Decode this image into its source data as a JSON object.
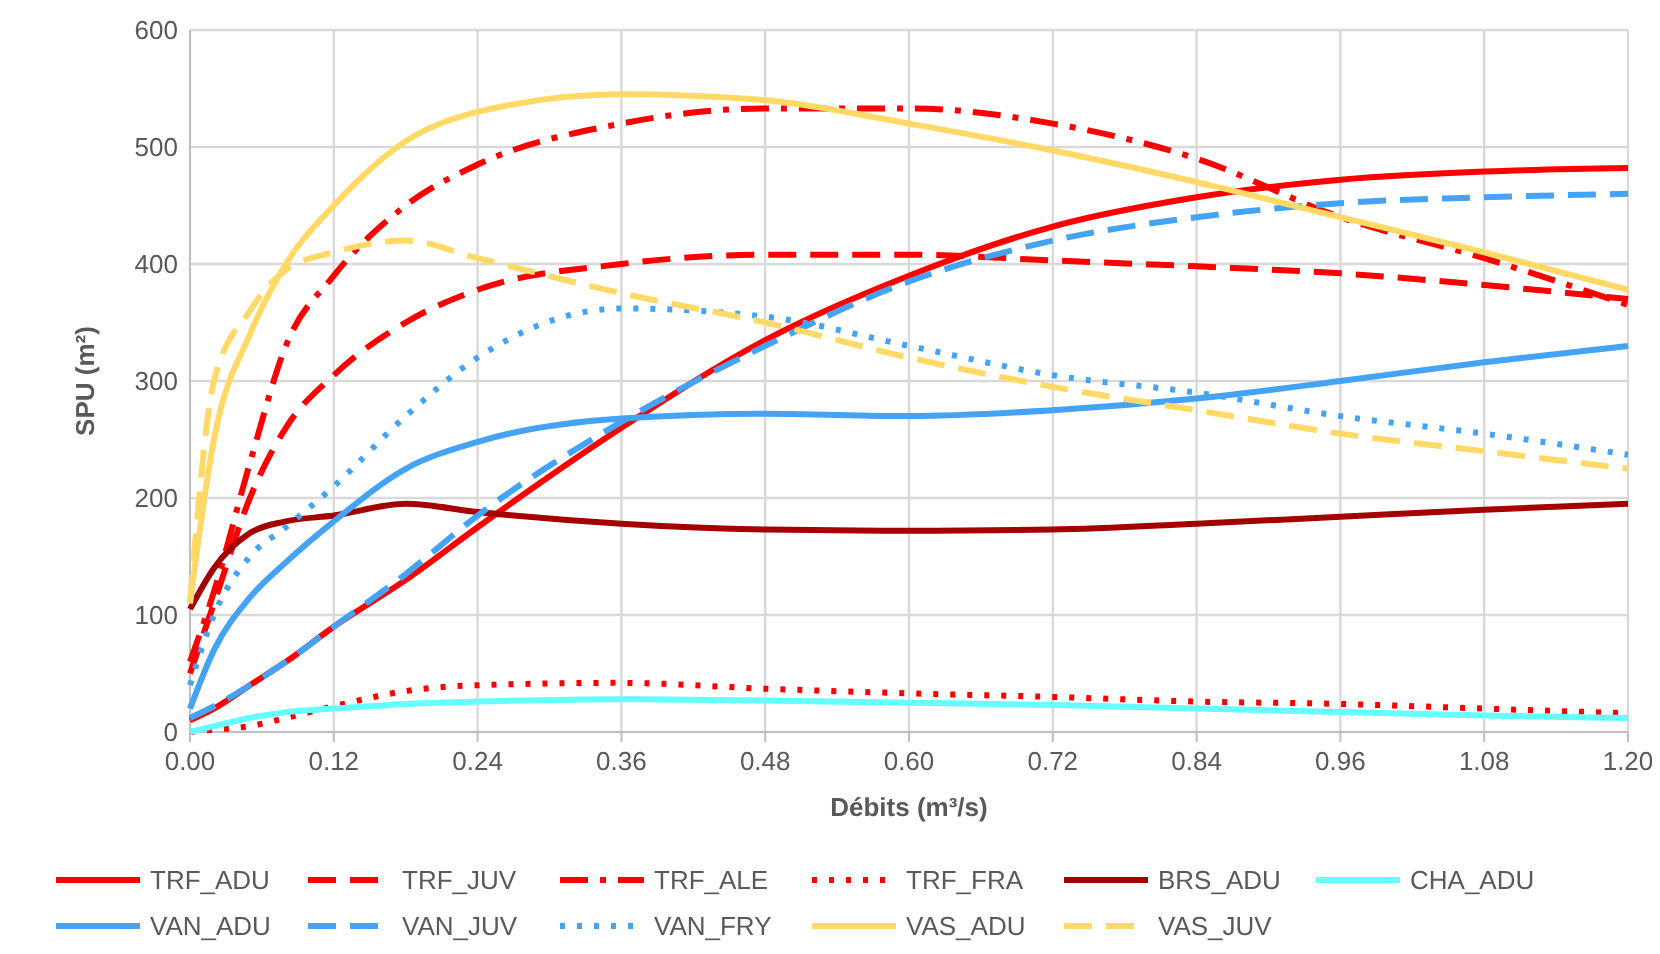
{
  "chart_data": {
    "type": "line",
    "xlabel": "Débits (m³/s)",
    "ylabel": "SPU (m²)",
    "x": [
      0,
      0.02,
      0.05,
      0.08,
      0.12,
      0.18,
      0.24,
      0.36,
      0.48,
      0.6,
      0.72,
      0.84,
      0.96,
      1.08,
      1.2
    ],
    "xlim": [
      0,
      1.2
    ],
    "ylim": [
      0,
      600
    ],
    "xticks": [
      {
        "value": 0,
        "label": "0.00"
      },
      {
        "value": 0.12,
        "label": "0.12"
      },
      {
        "value": 0.24,
        "label": "0.24"
      },
      {
        "value": 0.36,
        "label": "0.36"
      },
      {
        "value": 0.48,
        "label": "0.48"
      },
      {
        "value": 0.6,
        "label": "0.60"
      },
      {
        "value": 0.72,
        "label": "0.72"
      },
      {
        "value": 0.84,
        "label": "0.84"
      },
      {
        "value": 0.96,
        "label": "0.96"
      },
      {
        "value": 1.08,
        "label": "1.08"
      },
      {
        "value": 1.2,
        "label": "1.20"
      }
    ],
    "yticks": [
      0,
      100,
      200,
      300,
      400,
      500,
      600
    ],
    "grid": true,
    "legend": "bottom",
    "series": [
      {
        "name": "TRF_ADU",
        "color": "#ff0000",
        "line_style": "solid",
        "values": [
          10,
          20,
          40,
          60,
          90,
          130,
          175,
          260,
          335,
          390,
          432,
          457,
          472,
          479,
          482
        ]
      },
      {
        "name": "TRF_JUV",
        "color": "#ff0000",
        "line_style": "dashed",
        "values": [
          50,
          110,
          200,
          260,
          305,
          350,
          378,
          400,
          408,
          408,
          403,
          398,
          392,
          382,
          370
        ]
      },
      {
        "name": "TRF_ALE",
        "color": "#ff0000",
        "line_style": "dashdot",
        "values": [
          60,
          120,
          230,
          330,
          390,
          450,
          485,
          520,
          533,
          533,
          520,
          490,
          440,
          405,
          365
        ]
      },
      {
        "name": "TRF_FRA",
        "color": "#ff0000",
        "line_style": "dotted",
        "values": [
          0,
          2,
          5,
          12,
          22,
          35,
          40,
          42,
          37,
          33,
          30,
          26,
          24,
          20,
          16
        ]
      },
      {
        "name": "BRS_ADU",
        "color": "#a50000",
        "line_style": "solid",
        "values": [
          105,
          140,
          170,
          180,
          185,
          195,
          188,
          178,
          173,
          172,
          173,
          178,
          184,
          190,
          195
        ]
      },
      {
        "name": "CHA_ADU",
        "color": "#66ffff",
        "line_style": "solid",
        "values": [
          0,
          5,
          12,
          17,
          20,
          24,
          26,
          28,
          27,
          25,
          23,
          20,
          17,
          14,
          12
        ]
      },
      {
        "name": "VAN_ADU",
        "color": "#45a3f5",
        "line_style": "solid",
        "values": [
          20,
          70,
          115,
          145,
          180,
          225,
          248,
          268,
          272,
          270,
          275,
          285,
          300,
          316,
          330
        ]
      },
      {
        "name": "VAN_JUV",
        "color": "#45a3f5",
        "line_style": "dashed",
        "values": [
          12,
          22,
          40,
          60,
          90,
          135,
          185,
          265,
          330,
          385,
          420,
          440,
          452,
          457,
          460
        ]
      },
      {
        "name": "VAN_FRY",
        "color": "#45a3f5",
        "line_style": "dotted",
        "values": [
          40,
          100,
          150,
          175,
          210,
          270,
          320,
          362,
          355,
          330,
          305,
          290,
          270,
          255,
          237
        ]
      },
      {
        "name": "VAS_ADU",
        "color": "#ffd966",
        "line_style": "solid",
        "values": [
          110,
          250,
          340,
          400,
          450,
          505,
          530,
          545,
          540,
          520,
          497,
          470,
          440,
          410,
          378
        ]
      },
      {
        "name": "VAS_JUV",
        "color": "#ffd966",
        "line_style": "dashed",
        "values": [
          110,
          300,
          360,
          395,
          410,
          420,
          405,
          375,
          350,
          320,
          295,
          275,
          255,
          240,
          225
        ]
      }
    ]
  }
}
